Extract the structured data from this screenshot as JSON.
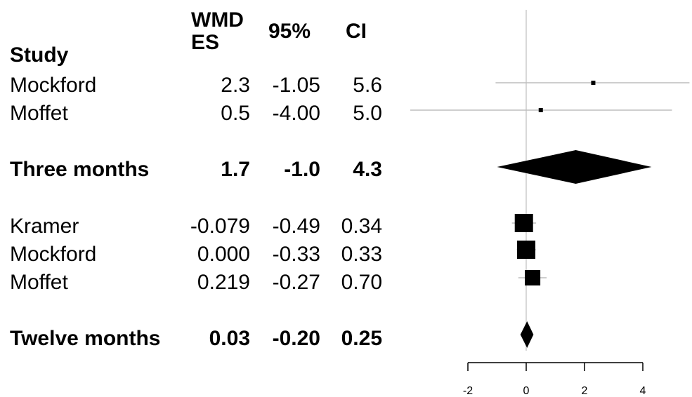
{
  "table": {
    "headers": {
      "study": "Study",
      "wmd_line1": "WMD",
      "wmd_line2": "ES",
      "ci_low": "95%",
      "ci_high": "CI"
    },
    "rows": [
      {
        "study": "Mockford",
        "es": "2.3",
        "lo": "-1.05",
        "hi": "5.6",
        "bold": false
      },
      {
        "study": "Moffet",
        "es": "0.5",
        "lo": "-4.00",
        "hi": "5.0",
        "bold": false
      },
      {
        "study": "Three months",
        "es": "1.7",
        "lo": "-1.0",
        "hi": "4.3",
        "bold": true
      },
      {
        "study": "Kramer",
        "es": "-0.079",
        "lo": "-0.49",
        "hi": "0.34",
        "bold": false
      },
      {
        "study": "Mockford",
        "es": "0.000",
        "lo": "-0.33",
        "hi": "0.33",
        "bold": false
      },
      {
        "study": "Moffet",
        "es": "0.219",
        "lo": "-0.27",
        "hi": "0.70",
        "bold": false
      },
      {
        "study": "Twelve months",
        "es": "0.03",
        "lo": "-0.20",
        "hi": "0.25",
        "bold": true
      }
    ]
  },
  "chart_data": {
    "type": "forest",
    "x_ticks": [
      -2,
      0,
      2,
      4
    ],
    "x_tick_labels": [
      "-2",
      "0",
      "2",
      "4"
    ],
    "reference_line": 0,
    "points": [
      {
        "label": "Mockford",
        "kind": "study",
        "es": 2.3,
        "lo": -1.05,
        "hi": 5.6,
        "weight": "small"
      },
      {
        "label": "Moffet",
        "kind": "study",
        "es": 0.5,
        "lo": -4.0,
        "hi": 5.0,
        "weight": "small"
      },
      {
        "label": "Three months",
        "kind": "summary",
        "es": 1.7,
        "lo": -1.0,
        "hi": 4.3
      },
      {
        "label": "Kramer",
        "kind": "study",
        "es": -0.079,
        "lo": -0.49,
        "hi": 0.34,
        "weight": "large"
      },
      {
        "label": "Mockford",
        "kind": "study",
        "es": 0.0,
        "lo": -0.33,
        "hi": 0.33,
        "weight": "large"
      },
      {
        "label": "Moffet",
        "kind": "study",
        "es": 0.219,
        "lo": -0.27,
        "hi": 0.7,
        "weight": "medium"
      },
      {
        "label": "Twelve months",
        "kind": "summary",
        "es": 0.03,
        "lo": -0.2,
        "hi": 0.25
      }
    ],
    "colors": {
      "marker": "#000000",
      "ci_line": "#bdbdbd",
      "reference": "#cccccc",
      "axis": "#000000"
    }
  }
}
